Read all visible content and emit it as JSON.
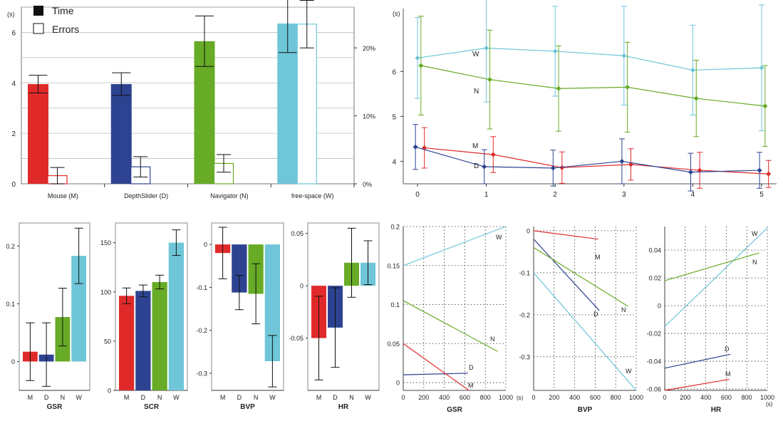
{
  "colors": {
    "M": "#e02a2a",
    "D": "#2d4391",
    "N": "#67ab26",
    "W": "#6ec6d8"
  },
  "chart_data": [
    {
      "id": "time_errors",
      "type": "bar",
      "ylabel": "(s)",
      "legend": [
        "Time",
        "Errors"
      ],
      "categories": [
        "Mouse (M)",
        "DepthSlider (D)",
        "Navigator (N)",
        "free-space (W)"
      ],
      "keys": [
        "M",
        "D",
        "N",
        "W"
      ],
      "ylim": [
        0,
        7
      ],
      "yticks": [
        "0",
        "2",
        "4",
        "6"
      ],
      "y2lim": [
        0,
        0.26
      ],
      "y2ticks": [
        "0%",
        "10%",
        "20%"
      ],
      "time": {
        "values": [
          3.95,
          3.95,
          5.65,
          6.35
        ],
        "err": [
          0.35,
          0.45,
          1.0,
          1.15
        ]
      },
      "errors": {
        "values": [
          0.012,
          0.025,
          0.03,
          0.235
        ],
        "err": [
          0.012,
          0.015,
          0.013,
          0.035
        ]
      }
    },
    {
      "id": "time_by_block",
      "type": "line",
      "ylabel": "(s)",
      "x": [
        0,
        1,
        2,
        3,
        4,
        5
      ],
      "xticks": [
        "0",
        "1",
        "2",
        "3",
        "4",
        "5"
      ],
      "ylim": [
        3.5,
        7.4
      ],
      "yticks": [
        "4",
        "5",
        "6"
      ],
      "series": [
        {
          "name": "W",
          "key": "W",
          "values": [
            6.3,
            6.52,
            6.45,
            6.35,
            6.03,
            6.08
          ],
          "err": [
            0.9,
            1.2,
            1.0,
            1.1,
            1.0,
            1.4
          ],
          "offset": 0.0
        },
        {
          "name": "N",
          "key": "N",
          "values": [
            6.13,
            5.82,
            5.62,
            5.65,
            5.4,
            5.23
          ],
          "err": [
            1.1,
            1.1,
            0.95,
            1.0,
            0.85,
            0.9
          ],
          "offset": 0.05
        },
        {
          "name": "M",
          "key": "M",
          "values": [
            4.3,
            4.15,
            3.86,
            3.93,
            3.8,
            3.72
          ],
          "err": [
            0.45,
            0.4,
            0.35,
            0.35,
            0.4,
            0.3
          ],
          "offset": 0.1
        },
        {
          "name": "D",
          "key": "D",
          "values": [
            4.32,
            3.88,
            3.85,
            4.0,
            3.76,
            3.8
          ],
          "err": [
            0.5,
            0.38,
            0.4,
            0.5,
            0.42,
            0.4
          ],
          "offset": -0.03
        }
      ]
    },
    {
      "id": "gsr",
      "type": "bar",
      "xlabel": "GSR",
      "categories": [
        "M",
        "D",
        "N",
        "W"
      ],
      "ylim": [
        -0.05,
        0.24
      ],
      "yticks": [
        "0",
        "0.1",
        "0.2"
      ],
      "values": [
        0.017,
        0.012,
        0.077,
        0.183
      ],
      "err": [
        0.05,
        0.055,
        0.05,
        0.048
      ]
    },
    {
      "id": "scr",
      "type": "bar",
      "xlabel": "SCR",
      "categories": [
        "M",
        "D",
        "N",
        "W"
      ],
      "ylim": [
        0,
        170
      ],
      "yticks": [
        "0",
        "50",
        "100",
        "150"
      ],
      "values": [
        96,
        101,
        110,
        150
      ],
      "err": [
        8,
        6,
        7,
        13
      ]
    },
    {
      "id": "bvp",
      "type": "bar",
      "xlabel": "BVP",
      "categories": [
        "M",
        "D",
        "N",
        "W"
      ],
      "ylim": [
        -0.34,
        0.05
      ],
      "yticks": [
        "0",
        "-0.1",
        "-0.2",
        "-0.3"
      ],
      "values": [
        -0.02,
        -0.112,
        -0.115,
        -0.272
      ],
      "err": [
        0.06,
        0.04,
        0.07,
        0.06
      ]
    },
    {
      "id": "hr",
      "type": "bar",
      "xlabel": "HR",
      "categories": [
        "M",
        "D",
        "N",
        "W"
      ],
      "ylim": [
        -0.1,
        0.06
      ],
      "yticks": [
        "0.05",
        "0",
        "-0.05"
      ],
      "values": [
        -0.05,
        -0.04,
        0.022,
        0.022
      ],
      "err": [
        0.04,
        0.038,
        0.033,
        0.021
      ]
    },
    {
      "id": "gsr_time",
      "type": "line",
      "xlabel": "GSR",
      "xlim": [
        0,
        1000
      ],
      "xticks": [
        "0",
        "200",
        "400",
        "600",
        "800",
        "1000"
      ],
      "ylim": [
        -0.01,
        0.2
      ],
      "yticks": [
        "0",
        "0.05",
        "0.1",
        "0.15",
        "0.2"
      ],
      "series": [
        {
          "name": "W",
          "key": "W",
          "x": [
            0,
            1000
          ],
          "y": [
            0.15,
            0.2
          ]
        },
        {
          "name": "N",
          "key": "N",
          "x": [
            0,
            920
          ],
          "y": [
            0.105,
            0.04
          ]
        },
        {
          "name": "D",
          "key": "D",
          "x": [
            0,
            630
          ],
          "y": [
            0.01,
            0.012
          ]
        },
        {
          "name": "M",
          "key": "M",
          "x": [
            0,
            640
          ],
          "y": [
            0.05,
            -0.01
          ]
        }
      ]
    },
    {
      "id": "bvp_time",
      "type": "line",
      "xlabel": "BVP",
      "xlim": [
        0,
        1000
      ],
      "xticks": [
        "0",
        "200",
        "400",
        "600",
        "800",
        "1000"
      ],
      "ylim": [
        -0.38,
        0.01
      ],
      "yticks": [
        "0",
        "-0.1",
        "-0.2",
        "-0.3"
      ],
      "series": [
        {
          "name": "M",
          "key": "M",
          "x": [
            0,
            630
          ],
          "y": [
            0.0,
            -0.02
          ]
        },
        {
          "name": "D",
          "key": "D",
          "x": [
            0,
            640
          ],
          "y": [
            -0.02,
            -0.19
          ]
        },
        {
          "name": "N",
          "key": "N",
          "x": [
            0,
            920
          ],
          "y": [
            -0.04,
            -0.18
          ]
        },
        {
          "name": "W",
          "key": "W",
          "x": [
            0,
            1000
          ],
          "y": [
            -0.1,
            -0.38
          ]
        }
      ]
    },
    {
      "id": "hr_time",
      "type": "line",
      "xlabel": "HR",
      "xlim": [
        0,
        1000
      ],
      "xticks": [
        "0",
        "200",
        "400",
        "600",
        "800",
        "1000"
      ],
      "ylim": [
        -0.061,
        0.057
      ],
      "yticks": [
        "0.04",
        "0.02",
        "0",
        "-0.02",
        "-0.04",
        "-0.06"
      ],
      "series": [
        {
          "name": "W",
          "key": "W",
          "x": [
            0,
            1000
          ],
          "y": [
            -0.015,
            0.056
          ]
        },
        {
          "name": "N",
          "key": "N",
          "x": [
            0,
            920
          ],
          "y": [
            0.018,
            0.038
          ]
        },
        {
          "name": "D",
          "key": "D",
          "x": [
            0,
            640
          ],
          "y": [
            -0.045,
            -0.035
          ]
        },
        {
          "name": "M",
          "key": "M",
          "x": [
            0,
            630
          ],
          "y": [
            -0.061,
            -0.053
          ]
        }
      ]
    }
  ],
  "units": {
    "seconds": "(s)"
  }
}
